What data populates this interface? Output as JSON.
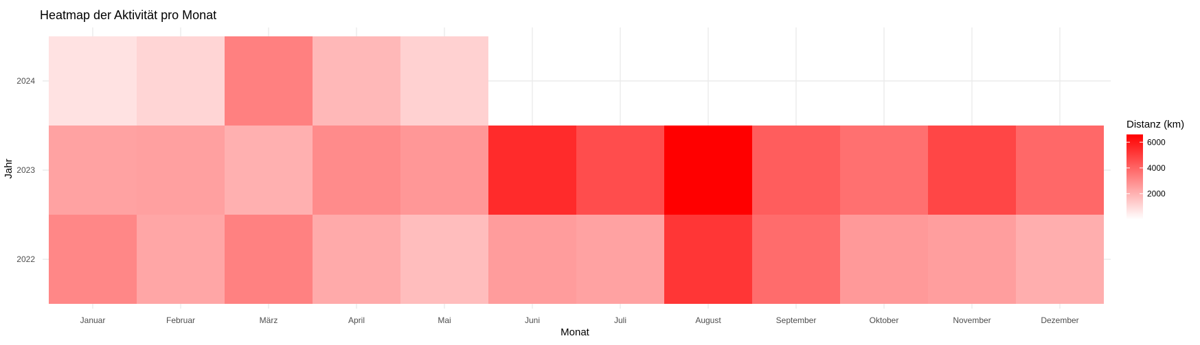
{
  "chart_data": {
    "type": "heatmap",
    "title": "Heatmap der Aktivität pro Monat",
    "xlabel": "Monat",
    "ylabel": "Jahr",
    "x_categories": [
      "Januar",
      "Februar",
      "März",
      "April",
      "Mai",
      "Juni",
      "Juli",
      "August",
      "September",
      "Oktober",
      "November",
      "Dezember"
    ],
    "y_categories": [
      "2024",
      "2023",
      "2022"
    ],
    "values": [
      [
        750,
        1100,
        3300,
        1850,
        1200,
        null,
        null,
        null,
        null,
        null,
        null,
        null
      ],
      [
        2400,
        2450,
        2050,
        3000,
        2700,
        5500,
        4600,
        6600,
        4200,
        3700,
        4800,
        3900
      ],
      [
        3100,
        2300,
        3250,
        2200,
        1700,
        2550,
        2400,
        5200,
        3800,
        2650,
        2500,
        2100
      ]
    ],
    "color_scale": {
      "low": "#ffffff",
      "high": "#ff0000",
      "min": 0,
      "max": 6600
    },
    "legend": {
      "title": "Distanz (km)",
      "ticks": [
        2000,
        4000,
        6000
      ],
      "placement": "right"
    },
    "grid": true
  }
}
